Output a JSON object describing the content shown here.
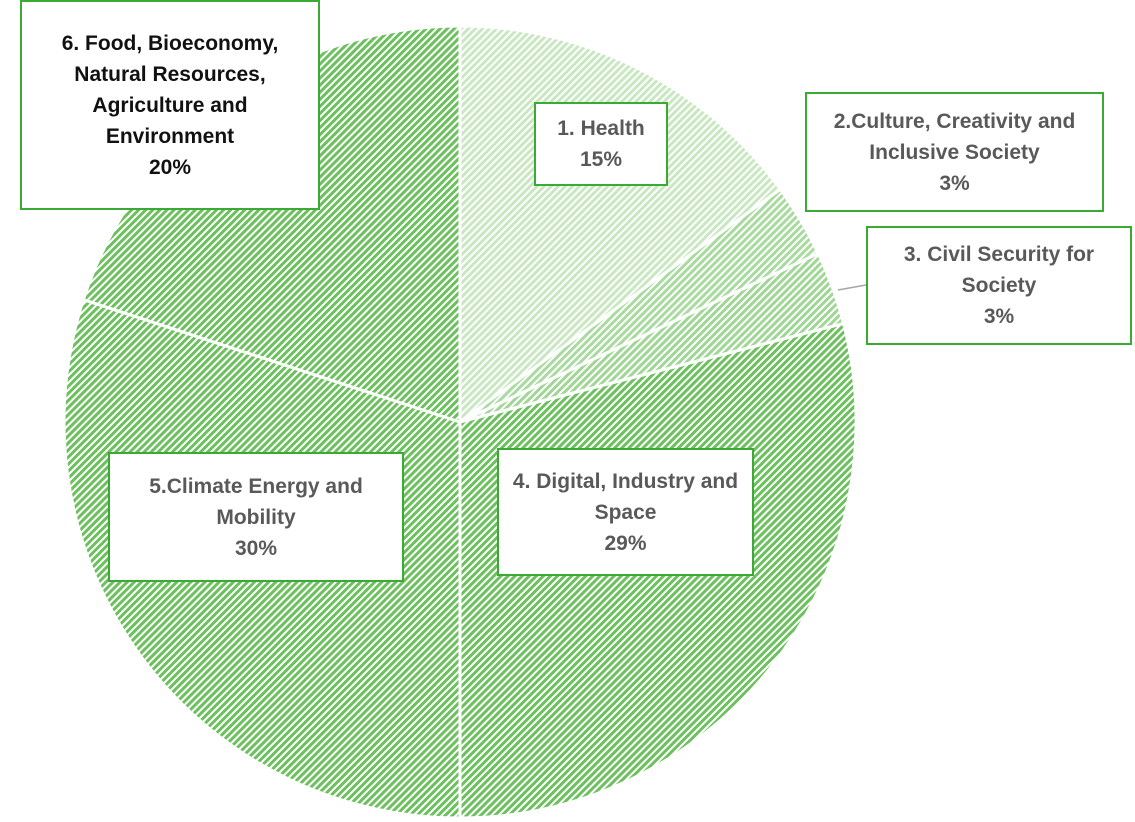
{
  "chart_data": {
    "type": "pie",
    "categories": [
      "1. Health",
      "2.Culture, Creativity and  Inclusive Society",
      "3. Civil Security for Society",
      "4. Digital, Industry and Space",
      "5.Climate Energy and Mobility",
      "6. Food, Bioeconomy, Natural  Resources, Agriculture and Environment"
    ],
    "values": [
      15,
      3,
      3,
      29,
      30,
      20
    ],
    "value_labels": [
      "15%",
      "3%",
      "3%",
      "29%",
      "30%",
      "20%"
    ],
    "colors": [
      "#c9e8c2",
      "#a9dba0",
      "#a0d696",
      "#6cc05e",
      "#6cc05e",
      "#6cc05e"
    ]
  }
}
